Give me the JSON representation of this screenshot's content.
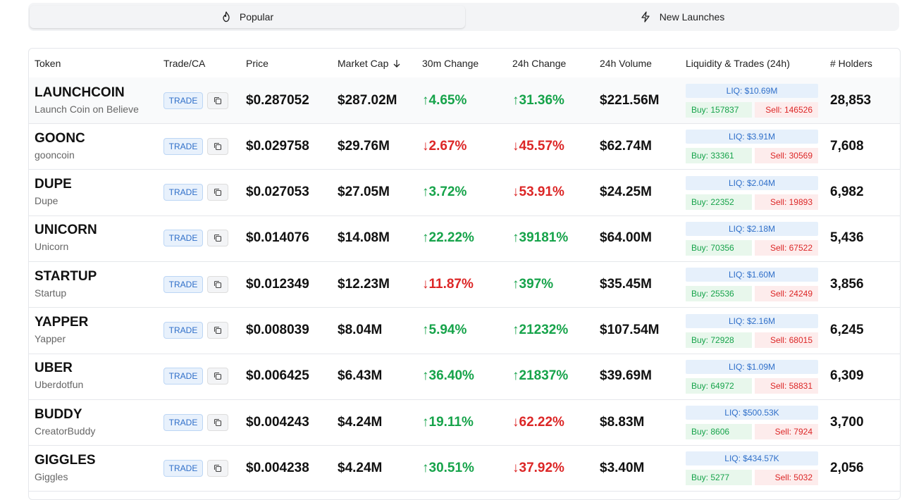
{
  "tabs": [
    {
      "label": "Popular",
      "icon": "flame-icon",
      "active": true
    },
    {
      "label": "New Launches",
      "icon": "lightning-icon",
      "active": false
    }
  ],
  "columns": {
    "token": "Token",
    "trade_ca": "Trade/CA",
    "price": "Price",
    "market_cap": "Market Cap",
    "change_30m": "30m Change",
    "change_24h": "24h Change",
    "volume_24h": "24h Volume",
    "liquidity": "Liquidity & Trades (24h)",
    "holders": "# Holders"
  },
  "sort": {
    "column": "market_cap",
    "direction": "desc"
  },
  "trade_label": "TRADE",
  "colors": {
    "positive": "#16a34a",
    "negative": "#dc2626",
    "accent": "#2f6fc9"
  },
  "rows": [
    {
      "symbol": "LAUNCHCOIN",
      "name": "Launch Coin on Believe",
      "price": "$0.287052",
      "mcap": "$287.02M",
      "ch30": "↑4.65%",
      "ch30_dir": "up",
      "ch24": "↑31.36%",
      "ch24_dir": "up",
      "vol": "$221.56M",
      "liq": "LIQ: $10.69M",
      "buy": "Buy: 157837",
      "sell": "Sell: 146526",
      "holders": "28,853"
    },
    {
      "symbol": "GOONC",
      "name": "gooncoin",
      "price": "$0.029758",
      "mcap": "$29.76M",
      "ch30": "↓2.67%",
      "ch30_dir": "down",
      "ch24": "↓45.57%",
      "ch24_dir": "down",
      "vol": "$62.74M",
      "liq": "LIQ: $3.91M",
      "buy": "Buy: 33361",
      "sell": "Sell: 30569",
      "holders": "7,608"
    },
    {
      "symbol": "DUPE",
      "name": "Dupe",
      "price": "$0.027053",
      "mcap": "$27.05M",
      "ch30": "↑3.72%",
      "ch30_dir": "up",
      "ch24": "↓53.91%",
      "ch24_dir": "down",
      "vol": "$24.25M",
      "liq": "LIQ: $2.04M",
      "buy": "Buy: 22352",
      "sell": "Sell: 19893",
      "holders": "6,982"
    },
    {
      "symbol": "UNICORN",
      "name": "Unicorn",
      "price": "$0.014076",
      "mcap": "$14.08M",
      "ch30": "↑22.22%",
      "ch30_dir": "up",
      "ch24": "↑39181%",
      "ch24_dir": "up",
      "vol": "$64.00M",
      "liq": "LIQ: $2.18M",
      "buy": "Buy: 70356",
      "sell": "Sell: 67522",
      "holders": "5,436"
    },
    {
      "symbol": "STARTUP",
      "name": "Startup",
      "price": "$0.012349",
      "mcap": "$12.23M",
      "ch30": "↓11.87%",
      "ch30_dir": "down",
      "ch24": "↑397%",
      "ch24_dir": "up",
      "vol": "$35.45M",
      "liq": "LIQ: $1.60M",
      "buy": "Buy: 25536",
      "sell": "Sell: 24249",
      "holders": "3,856"
    },
    {
      "symbol": "YAPPER",
      "name": "Yapper",
      "price": "$0.008039",
      "mcap": "$8.04M",
      "ch30": "↑5.94%",
      "ch30_dir": "up",
      "ch24": "↑21232%",
      "ch24_dir": "up",
      "vol": "$107.54M",
      "liq": "LIQ: $2.16M",
      "buy": "Buy: 72928",
      "sell": "Sell: 68015",
      "holders": "6,245"
    },
    {
      "symbol": "UBER",
      "name": "Uberdotfun",
      "price": "$0.006425",
      "mcap": "$6.43M",
      "ch30": "↑36.40%",
      "ch30_dir": "up",
      "ch24": "↑21837%",
      "ch24_dir": "up",
      "vol": "$39.69M",
      "liq": "LIQ: $1.09M",
      "buy": "Buy: 64972",
      "sell": "Sell: 58831",
      "holders": "6,309"
    },
    {
      "symbol": "BUDDY",
      "name": "CreatorBuddy",
      "price": "$0.004243",
      "mcap": "$4.24M",
      "ch30": "↑19.11%",
      "ch30_dir": "up",
      "ch24": "↓62.22%",
      "ch24_dir": "down",
      "vol": "$8.83M",
      "liq": "LIQ: $500.53K",
      "buy": "Buy: 8606",
      "sell": "Sell: 7924",
      "holders": "3,700"
    },
    {
      "symbol": "GIGGLES",
      "name": "Giggles",
      "price": "$0.004238",
      "mcap": "$4.24M",
      "ch30": "↑30.51%",
      "ch30_dir": "up",
      "ch24": "↓37.92%",
      "ch24_dir": "down",
      "vol": "$3.40M",
      "liq": "LIQ: $434.57K",
      "buy": "Buy: 5277",
      "sell": "Sell: 5032",
      "holders": "2,056"
    }
  ]
}
